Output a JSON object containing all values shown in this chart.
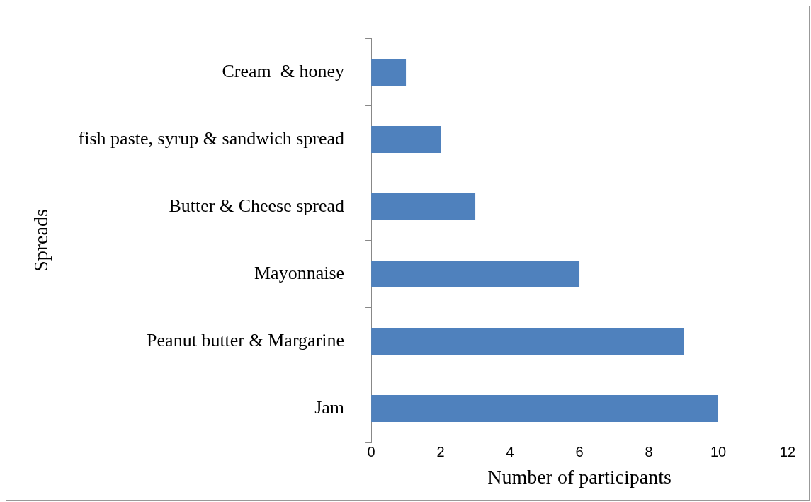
{
  "chart_data": {
    "type": "bar",
    "orientation": "horizontal",
    "xlabel": "Number of participants",
    "ylabel": "Spreads",
    "categories": [
      "Cream  & honey",
      "fish paste, syrup & sandwich spread",
      "Butter & Cheese spread",
      "Mayonnaise",
      "Peanut butter & Margarine",
      "Jam"
    ],
    "values": [
      1,
      2,
      3,
      6,
      9,
      10
    ],
    "color": "#4f81bd",
    "xlim": [
      0,
      12
    ],
    "xticks": [
      0,
      2,
      4,
      6,
      8,
      10,
      12
    ],
    "grid": false,
    "legend": false
  }
}
